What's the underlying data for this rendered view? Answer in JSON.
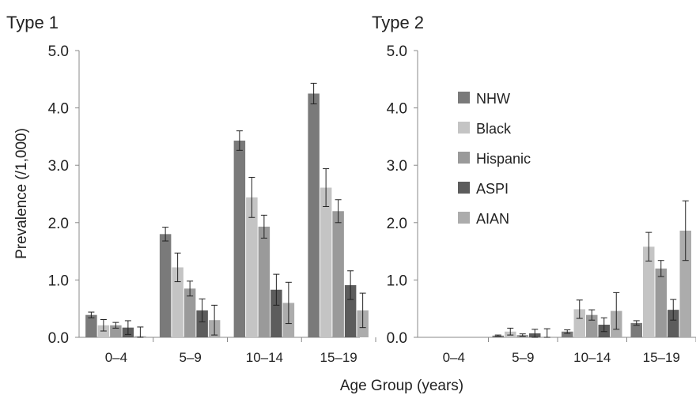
{
  "chart_data": [
    {
      "type": "bar",
      "title": "Type 1",
      "categories": [
        "0–4",
        "5–9",
        "10–14",
        "15–19"
      ],
      "ylabel": "Prevalence (/1,000)",
      "xlabel": "Age Group (years)",
      "ylim": [
        0,
        5
      ],
      "yticks": [
        "0.0",
        "1.0",
        "2.0",
        "3.0",
        "4.0",
        "5.0"
      ],
      "grid": false,
      "series": [
        {
          "name": "NHW",
          "color": "#7a7a7a",
          "values": [
            0.39,
            1.8,
            3.43,
            4.25
          ],
          "error": [
            0.05,
            0.12,
            0.17,
            0.18
          ]
        },
        {
          "name": "Black",
          "color": "#c4c4c4",
          "values": [
            0.21,
            1.22,
            2.44,
            2.61
          ],
          "error": [
            0.1,
            0.25,
            0.35,
            0.33
          ]
        },
        {
          "name": "Hispanic",
          "color": "#9a9a9a",
          "values": [
            0.21,
            0.85,
            1.93,
            2.2
          ],
          "error": [
            0.05,
            0.13,
            0.2,
            0.2
          ]
        },
        {
          "name": "ASPI",
          "color": "#5c5c5c",
          "values": [
            0.17,
            0.47,
            0.83,
            0.91
          ],
          "error": [
            0.12,
            0.2,
            0.27,
            0.25
          ]
        },
        {
          "name": "AIAN",
          "color": "#acacac",
          "values": [
            0.02,
            0.3,
            0.6,
            0.47
          ],
          "error": [
            0.16,
            0.26,
            0.36,
            0.3
          ]
        }
      ]
    },
    {
      "type": "bar",
      "title": "Type 2",
      "categories": [
        "0–4",
        "5–9",
        "10–14",
        "15–19"
      ],
      "ylim": [
        0,
        5
      ],
      "yticks": [
        "0.0",
        "1.0",
        "2.0",
        "3.0",
        "4.0",
        "5.0"
      ],
      "grid": false,
      "legend_position": "top-left",
      "series": [
        {
          "name": "NHW",
          "color": "#7a7a7a",
          "values": [
            0,
            0.03,
            0.1,
            0.25
          ],
          "error": [
            0,
            0.01,
            0.03,
            0.04
          ]
        },
        {
          "name": "Black",
          "color": "#c4c4c4",
          "values": [
            0,
            0.1,
            0.49,
            1.58
          ],
          "error": [
            0,
            0.06,
            0.16,
            0.25
          ]
        },
        {
          "name": "Hispanic",
          "color": "#9a9a9a",
          "values": [
            0,
            0.04,
            0.39,
            1.2
          ],
          "error": [
            0,
            0.02,
            0.09,
            0.14
          ]
        },
        {
          "name": "ASPI",
          "color": "#5c5c5c",
          "values": [
            0,
            0.07,
            0.22,
            0.48
          ],
          "error": [
            0,
            0.07,
            0.12,
            0.18
          ]
        },
        {
          "name": "AIAN",
          "color": "#acacac",
          "values": [
            0,
            0.0,
            0.46,
            1.86
          ],
          "error": [
            0,
            0.15,
            0.32,
            0.52
          ]
        }
      ]
    }
  ]
}
